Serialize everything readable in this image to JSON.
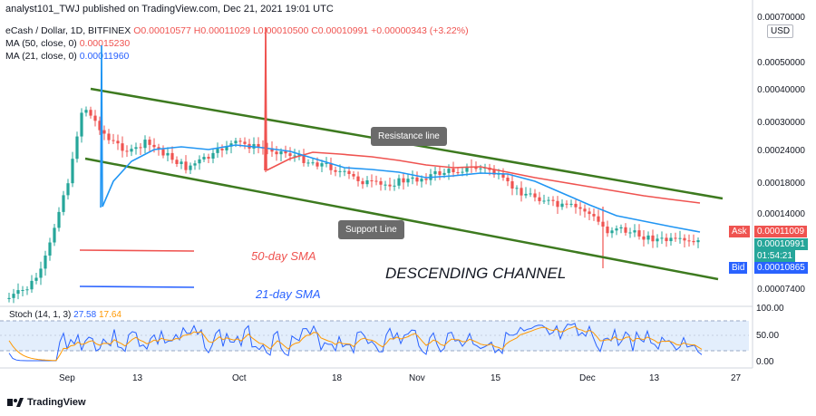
{
  "header": {
    "text": "analyst101_TWJ published on TradingView.com, Dec 21, 2021 19:01 UTC"
  },
  "legend": {
    "symbol": "eCash / Dollar, 1D, BITFINEX",
    "ohlc": "O0.00010577 H0.00011029 L0.00010500 C0.00010991 +0.00000343 (+3.22%)",
    "ma50_label": "MA (50, close, 0)",
    "ma50_value": "0.00015230",
    "ma21_label": "MA (21, close, 0)",
    "ma21_value": "0.00011960"
  },
  "price_axis": {
    "currency": "USD",
    "ticks": [
      "0.00070000",
      "0.00050000",
      "0.00040000",
      "0.00030000",
      "0.00024000",
      "0.00018000",
      "0.00014000",
      "0.00007400"
    ]
  },
  "tags": {
    "ask_label": "Ask",
    "ask_value": "0.00011009",
    "last_value": "0.00010991",
    "countdown": "01:54:21",
    "bid_label": "Bid",
    "bid_value": "0.00010865"
  },
  "annotations": {
    "resistance": "Resistance line",
    "support": "Support Line",
    "sma50": "50-day SMA",
    "sma21": "21-day SMA",
    "channel": "DESCENDING CHANNEL"
  },
  "stoch": {
    "label": "Stoch (14, 1, 3)",
    "k": "27.58",
    "d": "17.64",
    "ticks": [
      "100.00",
      "50.00",
      "0.00"
    ]
  },
  "date_axis": [
    "Sep",
    "13",
    "Oct",
    "18",
    "Nov",
    "15",
    "Dec",
    "13",
    "27"
  ],
  "footer": {
    "brand": "TradingView"
  },
  "colors": {
    "up": "#26a69a",
    "down": "#ef5350",
    "ma50": "#ef5350",
    "ma21": "#2196f3",
    "channel": "#3d7a1f",
    "stoch_k": "#2962ff",
    "stoch_d": "#ff9800"
  }
}
